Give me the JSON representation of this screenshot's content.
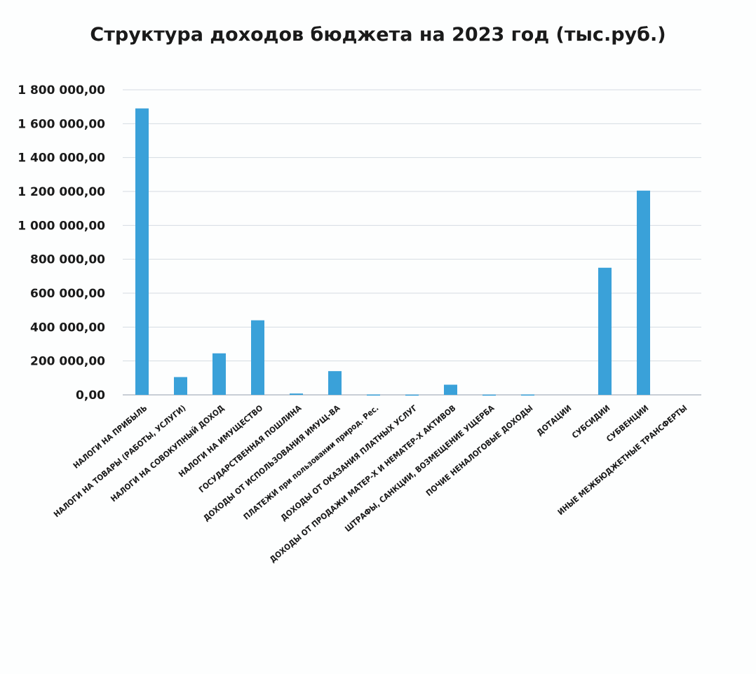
{
  "chart_data": {
    "type": "bar",
    "title": "Структура доходов бюджета на 2023 год (тыс.руб.)",
    "xlabel": "",
    "ylabel": "",
    "ylim": [
      0,
      1800000
    ],
    "y_ticks": [
      0,
      200000,
      400000,
      600000,
      800000,
      1000000,
      1200000,
      1400000,
      1600000,
      1800000
    ],
    "y_tick_labels": [
      "0,00",
      "200 000,00",
      "400 000,00",
      "600 000,00",
      "800 000,00",
      "1 000 000,00",
      "1 200 000,00",
      "1 400 000,00",
      "1 600 000,00",
      "1 800 000,00"
    ],
    "grid": true,
    "legend": "none",
    "bar_color": "#3aa1d9",
    "categories": [
      "НАЛОГИ НА ПРИБЫЛЬ",
      "НАЛОГИ НА ТОВАРЫ (РАБОТЫ, УСЛУГИ)",
      "НАЛОГИ НА СОВОКУПНЫЙ ДОХОД",
      "НАЛОГИ НА ИМУЩЕСТВО",
      "ГОСУДАРСТВЕННАЯ ПОШЛИНА",
      "ДОХОДЫ ОТ ИСПОЛЬЗОВАНИЯ ИМУЩ-ВА",
      "ПЛАТЕЖИ при пользовании природ. Рес.",
      "ДОХОДЫ ОТ ОКАЗАНИЯ ПЛАТНЫХ УСЛУГ",
      "ДОХОДЫ ОТ ПРОДАЖИ МАТЕР-Х И НЕМАТЕР-Х АКТИВОВ",
      "ШТРАФЫ, САНКЦИИ, ВОЗМЕЩЕНИЕ УЩЕРБА",
      "ПОЧИЕ НЕНАЛОГОВЫЕ ДОХОДЫ",
      "ДОТАЦИИ",
      "СУБСИДИИ",
      "СУБВЕНЦИИ",
      "ИНЫЕ МЕЖБЮДЖЕТНЫЕ ТРАНСФЕРТЫ"
    ],
    "values": [
      1690000,
      105000,
      245000,
      440000,
      8000,
      140000,
      2000,
      1500,
      60000,
      1500,
      2000,
      0,
      750000,
      1205000,
      0
    ]
  }
}
